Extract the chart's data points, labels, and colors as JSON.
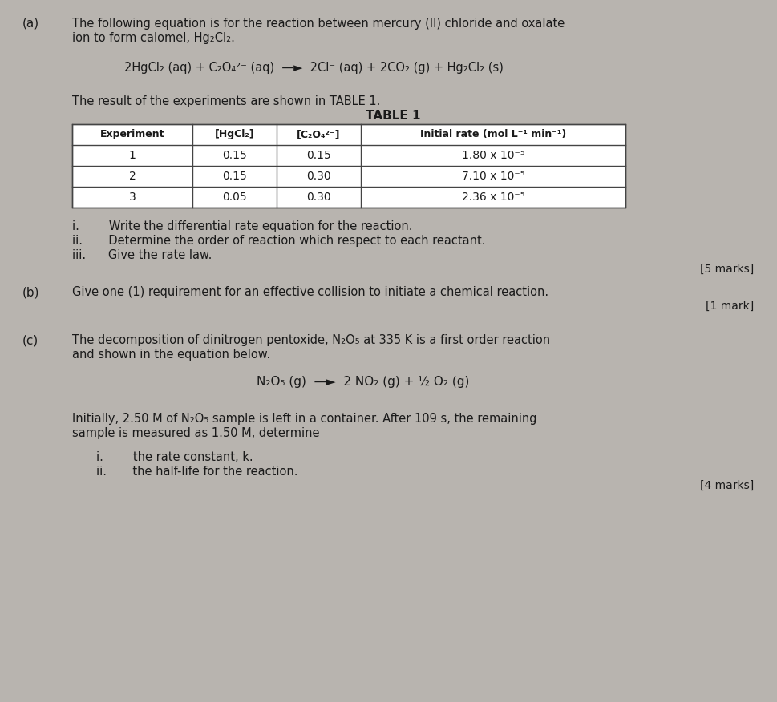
{
  "bg_color": "#b8b4af",
  "text_color": "#1a1a1a",
  "part_a_label": "(a)",
  "part_a_line1": "The following equation is for the reaction between mercury (II) chloride and oxalate",
  "part_a_line2": "ion to form calomel, Hg₂Cl₂.",
  "equation_a": "2HgCl₂ (aq) + C₂O₄²⁻ (aq)  —►  2Cl⁻ (aq) + 2CO₂ (g) + Hg₂Cl₂ (s)",
  "table_intro": "The result of the experiments are shown in TABLE 1.",
  "table_title": "TABLE 1",
  "table_headers": [
    "Experiment",
    "[HgCl₂]",
    "[C₂O₄²⁻]",
    "Initial rate (mol L⁻¹ min⁻¹)"
  ],
  "table_data": [
    [
      "1",
      "0.15",
      "0.15",
      "1.80 x 10⁻⁵"
    ],
    [
      "2",
      "0.15",
      "0.30",
      "7.10 x 10⁻⁵"
    ],
    [
      "3",
      "0.05",
      "0.30",
      "2.36 x 10⁻⁵"
    ]
  ],
  "sub_a_i": "i.        Write the differential rate equation for the reaction.",
  "sub_a_ii": "ii.       Determine the order of reaction which respect to each reactant.",
  "sub_a_iii": "iii.      Give the rate law.",
  "marks_a": "[5 marks]",
  "part_b_label": "(b)",
  "part_b_text": "Give one (1) requirement for an effective collision to initiate a chemical reaction.",
  "marks_b": "[1 mark]",
  "part_c_label": "(c)",
  "part_c_line1": "The decomposition of dinitrogen pentoxide, N₂O₅ at 335 K is a first order reaction",
  "part_c_line2": "and shown in the equation below.",
  "equation_c": "N₂O₅ (g)  —►  2 NO₂ (g) + ½ O₂ (g)",
  "part_c_body1": "Initially, 2.50 M of N₂O₅ sample is left in a container. After 109 s, the remaining",
  "part_c_body2": "sample is measured as 1.50 M, determine",
  "sub_c_i": "i.        the rate constant, k.",
  "sub_c_ii": "ii.       the half-life for the reaction.",
  "marks_c": "[4 marks]"
}
